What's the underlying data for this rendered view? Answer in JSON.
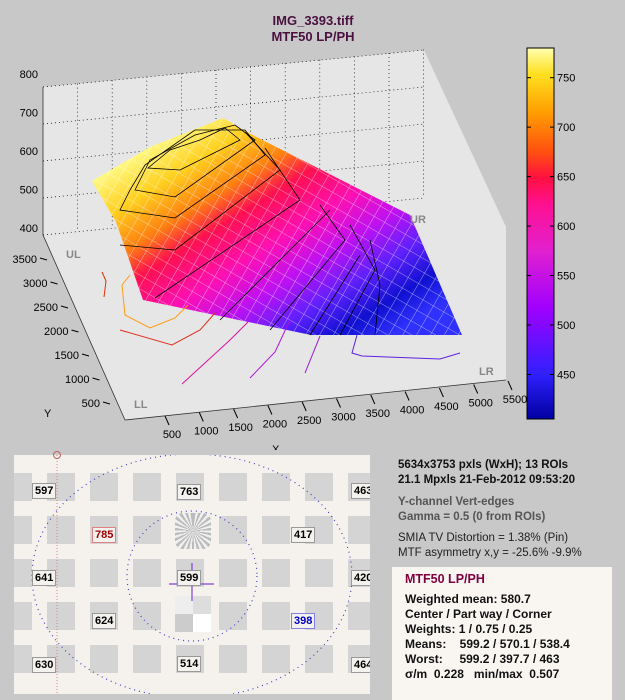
{
  "chart_data": {
    "type": "surface3d",
    "title": "IMG_3393.tiff",
    "subtitle": "MTF50 LP/PH",
    "xlabel": "X",
    "ylabel": "Y",
    "x_ticks": [
      "500",
      "1000",
      "1500",
      "2000",
      "2500",
      "3000",
      "3500",
      "4000",
      "4500",
      "5000",
      "5500"
    ],
    "y_ticks": [
      "500",
      "1000",
      "1500",
      "2000",
      "2500",
      "3000",
      "3500"
    ],
    "z_ticks": [
      "400",
      "500",
      "600",
      "700",
      "800"
    ],
    "zlim": [
      400,
      800
    ],
    "colorbar_ticks": [
      "450",
      "500",
      "550",
      "600",
      "650",
      "700",
      "750"
    ],
    "colorbar_range": [
      405,
      780
    ],
    "corner_labels": [
      "UL",
      "UR",
      "LR",
      "LL"
    ],
    "colormap": [
      "#0000a0",
      "#4020ff",
      "#a000ff",
      "#e020d0",
      "#ff1090",
      "#ff1040",
      "#ff6010",
      "#ffa000",
      "#ffe020",
      "#ffffa0"
    ]
  },
  "roi_values": [
    {
      "value": "597",
      "state": "normal"
    },
    {
      "value": "763",
      "state": "normal"
    },
    {
      "value": "463",
      "state": "normal"
    },
    {
      "value": "785",
      "state": "max"
    },
    {
      "value": "417",
      "state": "normal"
    },
    {
      "value": "641",
      "state": "normal"
    },
    {
      "value": "599",
      "state": "normal"
    },
    {
      "value": "420",
      "state": "normal"
    },
    {
      "value": "624",
      "state": "normal"
    },
    {
      "value": "398",
      "state": "min"
    },
    {
      "value": "630",
      "state": "normal"
    },
    {
      "value": "514",
      "state": "normal"
    },
    {
      "value": "464",
      "state": "normal"
    }
  ],
  "info": {
    "line1": "5634x3753 pxls (WxH);   13 ROIs",
    "line2": "21.1 Mpxls   21-Feb-2012 09:53:20",
    "line3": "Y-channel   Vert-edges",
    "line4": "Gamma = 0.5  (0 from ROIs)",
    "line5": "SMIA TV Distortion = 1.38%  (Pin)",
    "line6": "MTF asymmetry x,y = -25.6%  -9.9%"
  },
  "summary": {
    "title": "MTF50 LP/PH",
    "weighted_mean": "Weighted mean: 580.7",
    "regions": "Center / Part way / Corner",
    "weights": "Weights: 1 / 0.75 / 0.25",
    "means": "Means:    599.2 / 570.1 / 538.4",
    "worst": "Worst:     599.2 / 397.7 / 463",
    "sigma": "σ/m  0.228   min/max  0.507"
  }
}
